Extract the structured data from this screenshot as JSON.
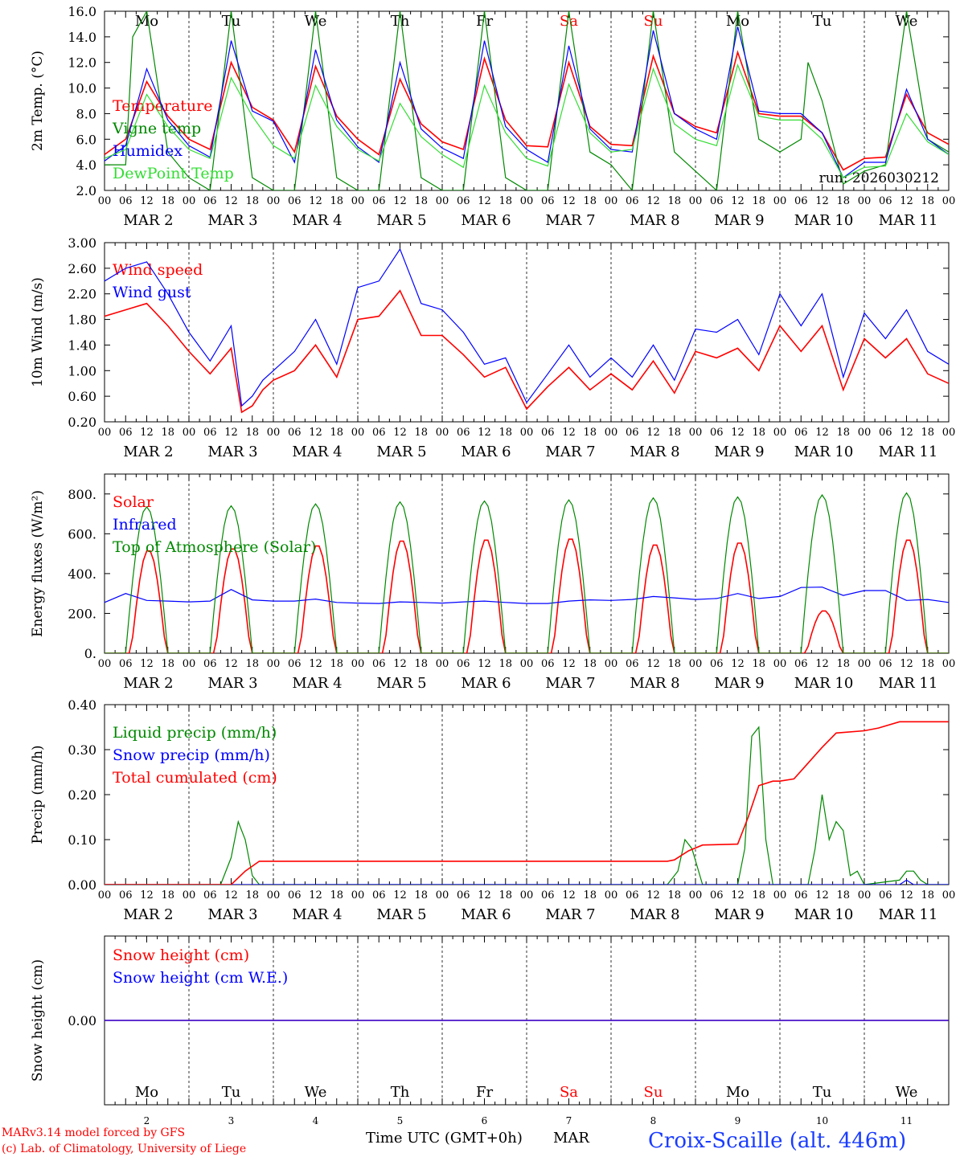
{
  "footer": {
    "credit1": "MARv3.14 model forced by GFS",
    "credit2": "(c) Lab. of Climatology, University of Liege",
    "xlabel": "Time UTC (GMT+0h)",
    "month": "MAR",
    "station": "Croix-Scaille (alt. 446m)"
  },
  "colors": {
    "red": "#ff0000",
    "green": "#008800",
    "blue": "#0000ff",
    "lightgreen": "#33dd33",
    "weekend": "#ff0000",
    "text": "#000000"
  },
  "days": [
    {
      "dow": "Mo",
      "date": "2",
      "weekend": false
    },
    {
      "dow": "Tu",
      "date": "3",
      "weekend": false
    },
    {
      "dow": "We",
      "date": "4",
      "weekend": false
    },
    {
      "dow": "Th",
      "date": "5",
      "weekend": false
    },
    {
      "dow": "Fr",
      "date": "6",
      "weekend": false
    },
    {
      "dow": "Sa",
      "date": "7",
      "weekend": true
    },
    {
      "dow": "Su",
      "date": "8",
      "weekend": true
    },
    {
      "dow": "Mo",
      "date": "9",
      "weekend": false
    },
    {
      "dow": "Tu",
      "date": "10",
      "weekend": false
    },
    {
      "dow": "We",
      "date": "11",
      "weekend": false
    }
  ],
  "hour_ticks": [
    "00",
    "06",
    "12",
    "18"
  ],
  "date_labels": [
    "MAR 2",
    "MAR 3",
    "MAR 4",
    "MAR 5",
    "MAR 6",
    "MAR 7",
    "MAR 8",
    "MAR 9",
    "MAR 10",
    "MAR 11"
  ],
  "chart_data": [
    {
      "type": "line",
      "ylabel": "2m Temp. (°C)",
      "ylim": [
        2,
        16
      ],
      "yticks": [
        "2.0",
        "4.0",
        "6.0",
        "8.0",
        "10.0",
        "12.0",
        "14.0",
        "16.0"
      ],
      "annotation": "run: 2026030212",
      "x_unit": "hours since MAR 2 00 UTC",
      "series": [
        {
          "name": "Temperature",
          "color": "red",
          "x": [
            0,
            6,
            12,
            18,
            24,
            30,
            36,
            42,
            48,
            54,
            60,
            66,
            72,
            78,
            84,
            90,
            96,
            102,
            108,
            114,
            120,
            126,
            132,
            138,
            144,
            150,
            156,
            162,
            168,
            174,
            180,
            186,
            192,
            198,
            204,
            210,
            216,
            222,
            228,
            234,
            240
          ],
          "y": [
            4.8,
            6.0,
            10.5,
            7.8,
            6.0,
            5.2,
            12.0,
            8.5,
            7.5,
            5.0,
            11.7,
            7.8,
            6.0,
            4.8,
            10.7,
            7.2,
            5.8,
            5.2,
            12.3,
            7.5,
            5.5,
            5.4,
            12.0,
            7.0,
            5.6,
            5.5,
            12.5,
            8.0,
            7.0,
            6.5,
            12.8,
            8.0,
            7.8,
            7.8,
            6.5,
            3.6,
            4.5,
            4.6,
            9.5,
            6.5,
            5.6
          ]
        },
        {
          "name": "Vigne temp",
          "color": "green",
          "x": [
            0,
            6,
            8,
            12,
            18,
            24,
            30,
            36,
            42,
            48,
            54,
            60,
            66,
            72,
            78,
            84,
            90,
            96,
            102,
            108,
            114,
            120,
            126,
            132,
            138,
            144,
            150,
            156,
            162,
            168,
            174,
            180,
            186,
            192,
            198,
            200,
            204,
            210,
            216,
            222,
            228,
            234,
            240
          ],
          "y": [
            4.0,
            4.0,
            14.0,
            16.0,
            5.0,
            3.0,
            2.0,
            16.0,
            3.0,
            2.0,
            2.0,
            16.0,
            3.0,
            2.0,
            2.0,
            16.0,
            3.0,
            2.0,
            2.0,
            16.0,
            3.0,
            2.0,
            2.0,
            16.0,
            5.0,
            4.0,
            2.0,
            16.0,
            5.0,
            3.5,
            2.0,
            16.0,
            6.0,
            5.0,
            6.0,
            12.0,
            9.0,
            2.5,
            3.5,
            4.0,
            16.0,
            6.0,
            5.0
          ]
        },
        {
          "name": "Humidex",
          "color": "blue",
          "x": [
            0,
            6,
            12,
            18,
            24,
            30,
            36,
            42,
            48,
            54,
            60,
            66,
            72,
            78,
            84,
            90,
            96,
            102,
            108,
            114,
            120,
            126,
            132,
            138,
            144,
            150,
            156,
            162,
            168,
            174,
            180,
            186,
            192,
            198,
            204,
            210,
            216,
            222,
            228,
            234,
            240
          ],
          "y": [
            4.3,
            5.5,
            11.5,
            7.5,
            5.5,
            4.6,
            13.7,
            8.2,
            7.4,
            4.2,
            13.0,
            7.5,
            5.4,
            4.2,
            12.0,
            6.8,
            5.3,
            4.5,
            13.7,
            7.0,
            5.2,
            4.2,
            13.3,
            6.8,
            5.2,
            5.0,
            14.5,
            8.0,
            6.8,
            6.0,
            14.8,
            8.2,
            8.0,
            8.0,
            6.5,
            3.0,
            4.2,
            4.2,
            9.9,
            6.0,
            4.8
          ]
        },
        {
          "name": "DewPoint Temp",
          "color": "lightgreen",
          "x": [
            0,
            6,
            12,
            18,
            24,
            30,
            36,
            42,
            48,
            54,
            60,
            66,
            72,
            78,
            84,
            90,
            96,
            102,
            108,
            114,
            120,
            126,
            132,
            138,
            144,
            150,
            156,
            162,
            168,
            174,
            180,
            186,
            192,
            198,
            204,
            210,
            216,
            222,
            228,
            234,
            240
          ],
          "y": [
            4.5,
            5.2,
            9.5,
            7.0,
            5.2,
            4.5,
            10.8,
            7.8,
            5.5,
            4.5,
            10.2,
            7.0,
            5.2,
            4.3,
            8.8,
            6.2,
            4.8,
            3.8,
            10.2,
            6.5,
            4.5,
            3.9,
            10.3,
            6.5,
            5.0,
            5.2,
            11.5,
            7.2,
            6.0,
            5.5,
            11.8,
            7.8,
            7.5,
            7.5,
            6.0,
            3.0,
            3.8,
            3.9,
            8.0,
            5.8,
            4.8
          ]
        }
      ]
    },
    {
      "type": "line",
      "ylabel": "10m Wind (m/s)",
      "ylim": [
        0.2,
        3.0
      ],
      "yticks": [
        "0.20",
        "0.60",
        "1.00",
        "1.40",
        "1.80",
        "2.20",
        "2.60",
        "3.00"
      ],
      "x_unit": "hours since MAR 2 00 UTC",
      "series": [
        {
          "name": "Wind speed",
          "color": "red",
          "x": [
            0,
            6,
            12,
            18,
            24,
            30,
            36,
            39,
            42,
            45,
            48,
            54,
            60,
            66,
            72,
            78,
            84,
            90,
            96,
            102,
            108,
            114,
            120,
            126,
            132,
            138,
            144,
            150,
            156,
            162,
            168,
            174,
            180,
            186,
            192,
            198,
            204,
            210,
            216,
            222,
            228,
            234,
            240
          ],
          "y": [
            1.85,
            1.95,
            2.05,
            1.7,
            1.3,
            0.95,
            1.35,
            0.35,
            0.45,
            0.7,
            0.85,
            1.0,
            1.4,
            0.9,
            1.8,
            1.85,
            2.25,
            1.55,
            1.55,
            1.25,
            0.9,
            1.05,
            0.4,
            0.75,
            1.05,
            0.7,
            0.95,
            0.7,
            1.15,
            0.65,
            1.3,
            1.2,
            1.35,
            1.0,
            1.7,
            1.3,
            1.7,
            0.7,
            1.5,
            1.2,
            1.5,
            0.95,
            0.8
          ]
        },
        {
          "name": "Wind gust",
          "color": "blue",
          "x": [
            0,
            6,
            12,
            18,
            24,
            30,
            36,
            39,
            42,
            45,
            48,
            54,
            60,
            66,
            72,
            78,
            84,
            90,
            96,
            102,
            108,
            114,
            120,
            126,
            132,
            138,
            144,
            150,
            156,
            162,
            168,
            174,
            180,
            186,
            192,
            198,
            204,
            210,
            216,
            222,
            228,
            234,
            240
          ],
          "y": [
            2.4,
            2.6,
            2.7,
            2.2,
            1.6,
            1.15,
            1.7,
            0.45,
            0.6,
            0.85,
            1.0,
            1.3,
            1.8,
            1.1,
            2.3,
            2.4,
            2.9,
            2.05,
            1.95,
            1.6,
            1.1,
            1.2,
            0.5,
            0.95,
            1.4,
            0.9,
            1.2,
            0.9,
            1.4,
            0.85,
            1.65,
            1.6,
            1.8,
            1.25,
            2.2,
            1.7,
            2.2,
            0.9,
            1.9,
            1.5,
            1.95,
            1.3,
            1.1
          ]
        }
      ]
    },
    {
      "type": "line",
      "ylabel": "Energy fluxes (W/m²)",
      "ylim": [
        0,
        900
      ],
      "yticks": [
        "0.",
        "200.",
        "400.",
        "600.",
        "800."
      ],
      "x_unit": "hours since MAR 2 00 UTC",
      "series": [
        {
          "name": "Solar",
          "color": "red",
          "peaks": [
            520,
            530,
            545,
            570,
            575,
            580,
            550,
            560,
            215,
            575
          ]
        },
        {
          "name": "Infrared",
          "color": "blue",
          "x": [
            0,
            6,
            12,
            18,
            24,
            30,
            36,
            42,
            48,
            54,
            60,
            66,
            72,
            78,
            84,
            90,
            96,
            102,
            108,
            114,
            120,
            126,
            132,
            138,
            144,
            150,
            156,
            162,
            168,
            174,
            180,
            186,
            192,
            198,
            204,
            210,
            216,
            222,
            228,
            234,
            240
          ],
          "y": [
            255,
            300,
            265,
            262,
            258,
            262,
            320,
            268,
            262,
            262,
            272,
            255,
            252,
            250,
            258,
            255,
            252,
            258,
            262,
            255,
            250,
            250,
            262,
            268,
            265,
            270,
            285,
            278,
            270,
            275,
            300,
            275,
            285,
            330,
            332,
            290,
            315,
            315,
            265,
            270,
            255
          ]
        },
        {
          "name": "Top of Atmosphere (Solar)",
          "color": "green",
          "peaks": [
            735,
            740,
            750,
            760,
            765,
            770,
            780,
            785,
            795,
            805
          ]
        }
      ]
    },
    {
      "type": "line",
      "ylabel": "Precip (mm/h)",
      "ylim": [
        0,
        0.4
      ],
      "yticks": [
        "0.00",
        "0.10",
        "0.20",
        "0.30",
        "0.40"
      ],
      "x_unit": "hours since MAR 2 00 UTC",
      "series": [
        {
          "name": "Liquid precip (mm/h)",
          "color": "green",
          "x": [
            0,
            33,
            36,
            38,
            40,
            42,
            44,
            160,
            163,
            165,
            167,
            170,
            180,
            182,
            184,
            186,
            188,
            190,
            200,
            202,
            204,
            206,
            208,
            210,
            212,
            214,
            216,
            226,
            228,
            230,
            232,
            234,
            240
          ],
          "y": [
            0,
            0,
            0.06,
            0.14,
            0.1,
            0.02,
            0,
            0,
            0.03,
            0.1,
            0.08,
            0,
            0,
            0.08,
            0.33,
            0.35,
            0.1,
            0,
            0,
            0.08,
            0.2,
            0.1,
            0.14,
            0.12,
            0.02,
            0.03,
            0,
            0.01,
            0.03,
            0.03,
            0.01,
            0,
            0
          ]
        },
        {
          "name": "Snow precip (mm/h)",
          "color": "blue",
          "x": [
            0,
            226,
            228,
            230,
            240
          ],
          "y": [
            0,
            0,
            0.01,
            0,
            0
          ]
        },
        {
          "name": "Total cumulated (cm)",
          "color": "red",
          "x": [
            0,
            36,
            40,
            44,
            160,
            162,
            166,
            170,
            180,
            183,
            186,
            190,
            192,
            196,
            200,
            204,
            208,
            216,
            220,
            226,
            240
          ],
          "y": [
            0,
            0,
            0.03,
            0.052,
            0.052,
            0.055,
            0.075,
            0.088,
            0.09,
            0.15,
            0.22,
            0.23,
            0.23,
            0.235,
            0.27,
            0.305,
            0.337,
            0.342,
            0.348,
            0.362,
            0.362
          ]
        }
      ]
    },
    {
      "type": "line",
      "ylabel": "Snow height (cm)",
      "yticks": [
        "0.00"
      ],
      "x_unit": "hours since MAR 2 00 UTC",
      "series": [
        {
          "name": "Snow height (cm)",
          "color": "red",
          "x": [
            0,
            240
          ],
          "y": [
            0,
            0
          ]
        },
        {
          "name": "Snow height (cm W.E.)",
          "color": "blue",
          "x": [
            0,
            240
          ],
          "y": [
            0,
            0
          ]
        }
      ]
    }
  ]
}
